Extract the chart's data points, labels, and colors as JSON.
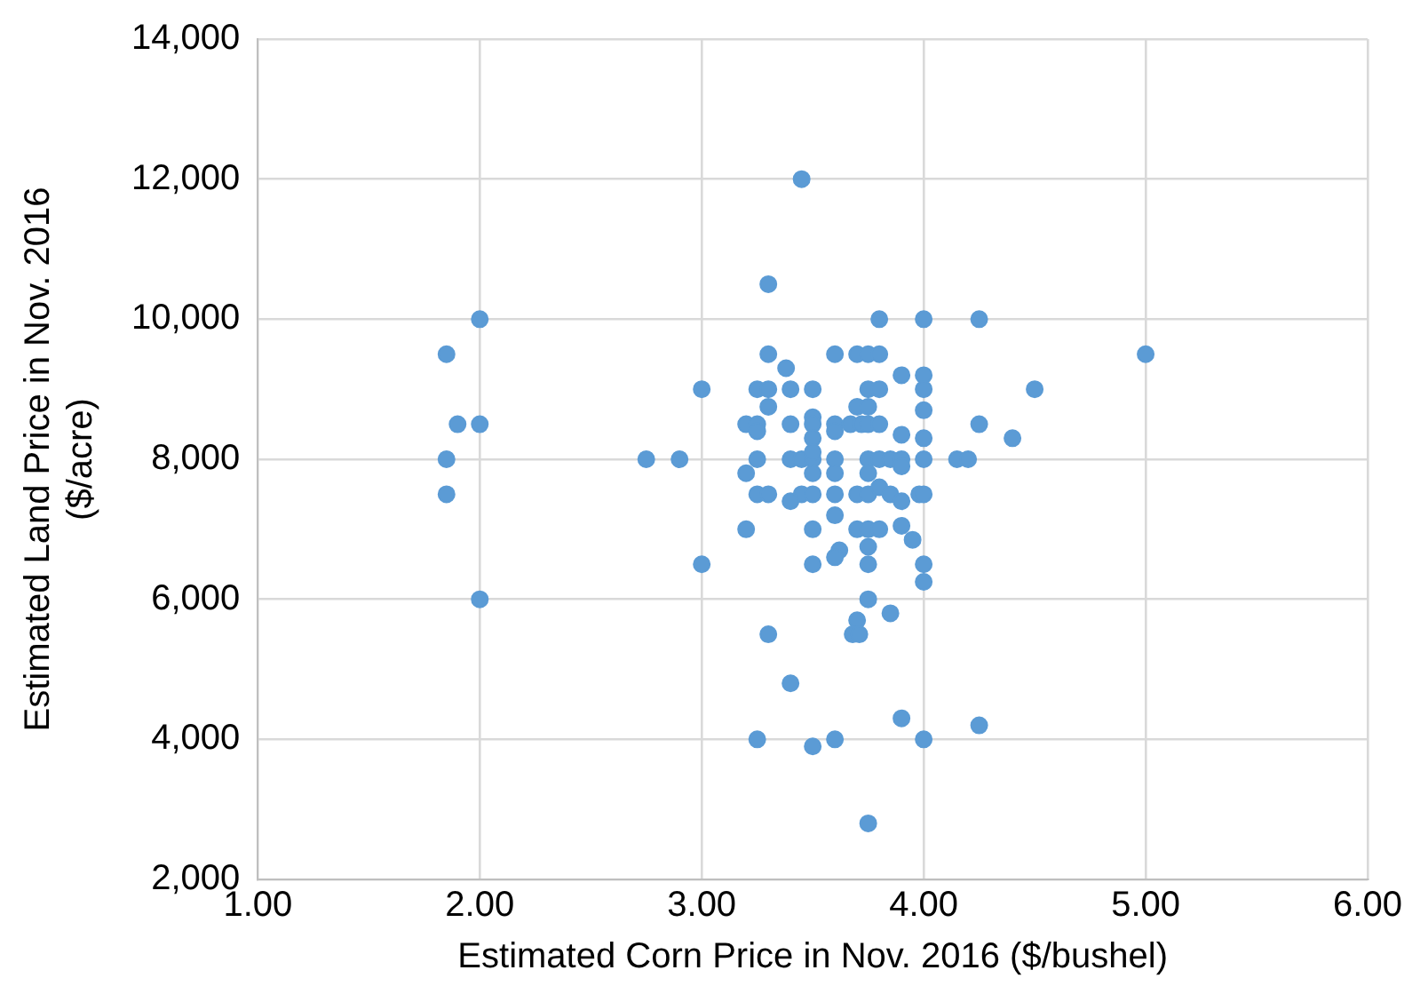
{
  "chart_data": {
    "type": "scatter",
    "xlabel": "Estimated Corn Price in Nov. 2016 ($/bushel)",
    "ylabel": "Estimated Land Price in Nov. 2016\n($/acre)",
    "x": [
      3.45,
      3.3,
      3.8,
      4.0,
      4.25,
      3.3,
      3.6,
      3.7,
      3.75,
      3.8,
      3.38,
      3.9,
      4.0,
      3.0,
      3.25,
      3.3,
      3.4,
      3.5,
      3.75,
      3.8,
      4.0,
      3.3,
      3.7,
      3.75,
      4.0,
      3.2,
      3.25,
      3.25,
      3.4,
      3.5,
      3.5,
      3.6,
      3.6,
      3.67,
      3.72,
      3.75,
      3.8,
      4.25,
      3.9,
      4.0,
      4.4,
      3.5,
      2.9,
      3.25,
      3.4,
      3.45,
      3.5,
      3.6,
      3.75,
      3.8,
      3.85,
      3.9,
      4.0,
      4.15,
      4.2,
      3.5,
      3.2,
      3.5,
      3.6,
      3.75,
      3.9,
      3.25,
      3.3,
      3.45,
      3.5,
      3.6,
      3.7,
      3.75,
      3.98,
      4.0,
      3.4,
      3.8,
      3.85,
      3.9,
      3.6,
      3.2,
      3.5,
      3.7,
      3.75,
      3.8,
      3.9,
      3.95,
      3.75,
      3.62,
      3.6,
      3.0,
      3.5,
      3.75,
      4.0,
      4.0,
      3.75,
      3.85,
      3.7,
      3.68,
      3.71,
      3.3,
      3.4,
      3.9,
      4.25,
      3.25,
      3.5,
      3.6,
      4.0,
      3.75,
      2.0,
      1.85,
      1.9,
      2.0,
      1.85,
      1.85,
      2.0,
      2.75,
      4.5,
      5.0
    ],
    "values": [
      12000,
      10500,
      10000,
      10000,
      10000,
      9500,
      9500,
      9500,
      9500,
      9500,
      9300,
      9200,
      9200,
      9000,
      9000,
      9000,
      9000,
      9000,
      9000,
      9000,
      9000,
      8750,
      8750,
      8750,
      8700,
      8500,
      8500,
      8400,
      8500,
      8600,
      8500,
      8500,
      8400,
      8500,
      8500,
      8500,
      8500,
      8500,
      8350,
      8300,
      8300,
      8300,
      8000,
      8000,
      8000,
      8000,
      8000,
      8000,
      8000,
      8000,
      8000,
      8000,
      8000,
      8000,
      8000,
      8100,
      7800,
      7800,
      7800,
      7800,
      7900,
      7500,
      7500,
      7500,
      7500,
      7500,
      7500,
      7500,
      7500,
      7500,
      7400,
      7600,
      7500,
      7400,
      7200,
      7000,
      7000,
      7000,
      7000,
      7000,
      7050,
      6850,
      6750,
      6700,
      6600,
      6500,
      6500,
      6500,
      6500,
      6250,
      6000,
      5800,
      5700,
      5500,
      5500,
      5500,
      4800,
      4300,
      4200,
      4000,
      3900,
      4000,
      4000,
      2800,
      10000,
      9500,
      8500,
      8500,
      8000,
      7500,
      6000,
      8000,
      9000,
      9500
    ],
    "color": "#5b9bd5",
    "marker": "circle",
    "grid": true,
    "xlim": [
      1,
      6
    ],
    "xticks": [
      {
        "value": 1,
        "label": "1.00"
      },
      {
        "value": 2,
        "label": "2.00"
      },
      {
        "value": 3,
        "label": "3.00"
      },
      {
        "value": 4,
        "label": "4.00"
      },
      {
        "value": 5,
        "label": "5.00"
      },
      {
        "value": 6,
        "label": "6.00"
      }
    ],
    "ylim": [
      2000,
      14000
    ],
    "yticks": [
      {
        "value": 2000,
        "label": "2,000"
      },
      {
        "value": 4000,
        "label": "4,000"
      },
      {
        "value": 6000,
        "label": "6,000"
      },
      {
        "value": 8000,
        "label": "8,000"
      },
      {
        "value": 10000,
        "label": "10,000"
      },
      {
        "value": 12000,
        "label": "12,000"
      },
      {
        "value": 14000,
        "label": "14,000"
      }
    ]
  }
}
